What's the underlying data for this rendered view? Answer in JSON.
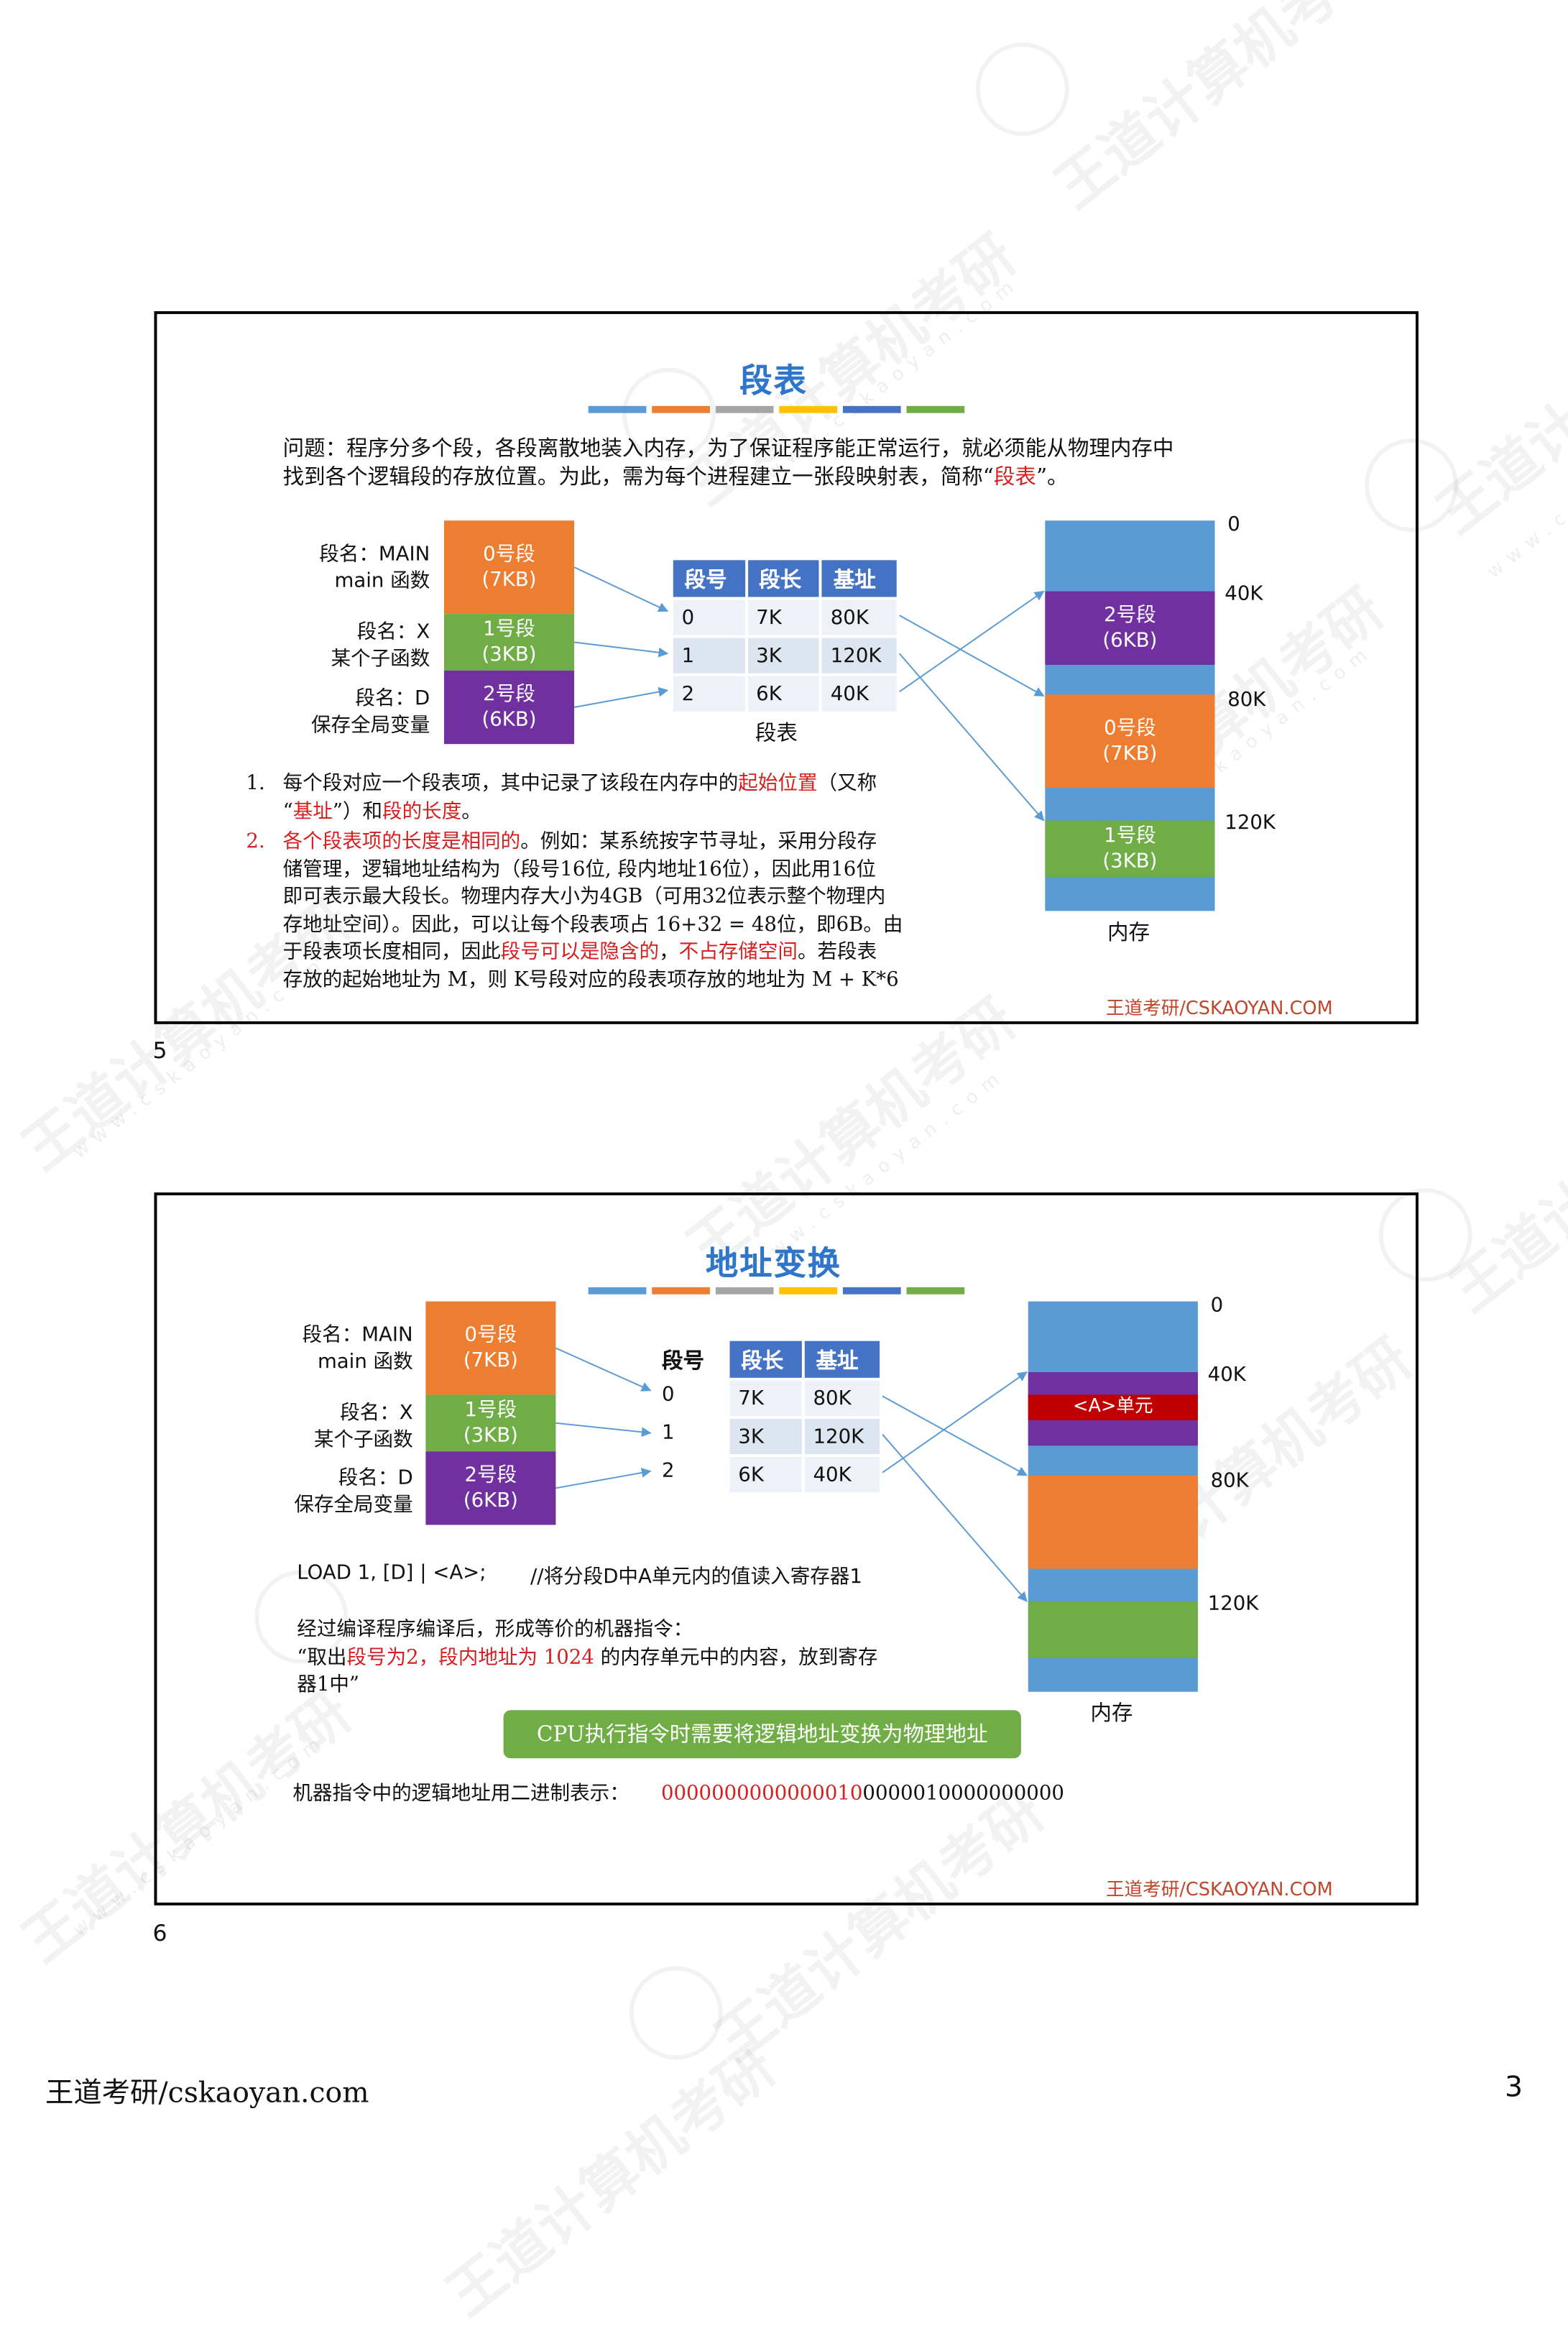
{
  "watermark": {
    "brand": "王道计算机考研",
    "url": "www.cskaoyan.com"
  },
  "slide1": {
    "title": "段表",
    "bar_colors": [
      "#5b9bd5",
      "#ed7d31",
      "#a5a5a5",
      "#ffc000",
      "#4472c4",
      "#70ad47"
    ],
    "intro_line1": "问题：程序分多个段，各段离散地装入内存，为了保证程序能正常运行，就必须能从物理内存中",
    "intro_line2a": "找到各个逻辑段的存放位置。为此，需为每个进程建立一张段映射表，简称“",
    "intro_line2b": "段表",
    "intro_line2c": "”。",
    "segments": [
      {
        "name": "段名：MAIN",
        "desc": "main 函数",
        "label": "0号段",
        "size": "(7KB)"
      },
      {
        "name": "段名：X",
        "desc": "某个子函数",
        "label": "1号段",
        "size": "(3KB)"
      },
      {
        "name": "段名：D",
        "desc": "保存全局变量",
        "label": "2号段",
        "size": "(6KB)"
      }
    ],
    "table": {
      "headers": [
        "段号",
        "段长",
        "基址"
      ],
      "rows": [
        [
          "0",
          "7K",
          "80K"
        ],
        [
          "1",
          "3K",
          "120K"
        ],
        [
          "2",
          "6K",
          "40K"
        ]
      ],
      "caption": "段表"
    },
    "memory": {
      "labels": [
        "0",
        "40K",
        "80K",
        "120K"
      ],
      "blocks": [
        {
          "label": "2号段",
          "size": "(6KB)"
        },
        {
          "label": "0号段",
          "size": "(7KB)"
        },
        {
          "label": "1号段",
          "size": "(3KB)"
        }
      ],
      "caption": "内存"
    },
    "points": {
      "p1_num": "1.",
      "p1_a": "每个段对应一个段表项，其中记录了该段在内存中的",
      "p1_b": "起始位置",
      "p1_c": "（又称",
      "p1_d": "“",
      "p1_e": "基址",
      "p1_f": "”）和",
      "p1_g": "段的长度",
      "p1_h": "。",
      "p2_num": "2.",
      "p2_a": "各个段表项的长度是相同的",
      "p2_b": "。例如：某系统按字节寻址，采用分段存",
      "p2_line2": "储管理，逻辑地址结构为（段号16位, 段内地址16位），因此用16位",
      "p2_line3": "即可表示最大段长。物理内存大小为4GB（可用32位表示整个物理内",
      "p2_line4": "存地址空间）。因此，可以让每个段表项占 16+32 = 48位，即6B。由",
      "p2_line5a": "于段表项长度相同，因此",
      "p2_line5b": "段号可以是隐含的",
      "p2_line5c": "，",
      "p2_line5d": "不占存储空间",
      "p2_line5e": "。若段表",
      "p2_line6": "存放的起始地址为 M，则 K号段对应的段表项存放的地址为 M + K*6"
    },
    "footer": "王道考研/CSKAOYAN.COM",
    "page_number": "5"
  },
  "slide2": {
    "title": "地址变换",
    "segments": [
      {
        "name": "段名：MAIN",
        "desc": "main 函数",
        "label": "0号段",
        "size": "(7KB)"
      },
      {
        "name": "段名：X",
        "desc": "某个子函数",
        "label": "1号段",
        "size": "(3KB)"
      },
      {
        "name": "段名：D",
        "desc": "保存全局变量",
        "label": "2号段",
        "size": "(6KB)"
      }
    ],
    "seg_no_header": "段号",
    "seg_nos": [
      "0",
      "1",
      "2"
    ],
    "table": {
      "headers": [
        "段长",
        "基址"
      ],
      "rows": [
        [
          "7K",
          "80K"
        ],
        [
          "3K",
          "120K"
        ],
        [
          "6K",
          "40K"
        ]
      ]
    },
    "memory": {
      "labels": [
        "0",
        "40K",
        "80K",
        "120K"
      ],
      "unit_label": "<A>单元",
      "caption": "内存"
    },
    "load_instr": "LOAD 1, [D] | <A>;",
    "load_comment": "//将分段D中A单元内的值读入寄存器1",
    "compile_line1": "经过编译程序编译后，形成等价的机器指令：",
    "compile_line2a": "“取出",
    "compile_line2b": "段号为2，段内地址为 1024",
    "compile_line2c": " 的内存单元中的内容，放到寄存",
    "compile_line3": "器1中”",
    "cpu_note": "CPU执行指令时需要将逻辑地址变换为物理地址",
    "binary_label": "机器指令中的逻辑地址用二进制表示：",
    "binary_red": "0000000000000010",
    "binary_black": "0000010000000000",
    "footer": "王道考研/CSKAOYAN.COM",
    "page_number": "6"
  },
  "page_footer": {
    "left": "王道考研/cskaoyan.com",
    "right": "3"
  }
}
